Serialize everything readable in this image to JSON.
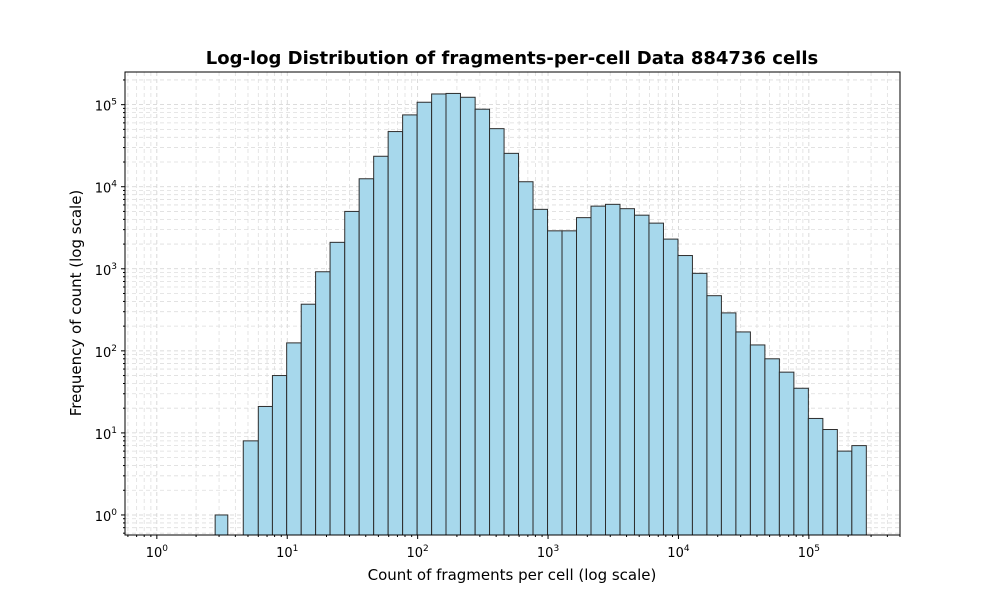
{
  "chart_data": {
    "type": "bar",
    "title": "Log-log Distribution of fragments-per-cell Data 884736 cells",
    "xlabel": "Count of fragments per cell (log scale)",
    "ylabel": "Frequency of count (log scale)",
    "xscale": "log",
    "yscale": "log",
    "xlim": [
      0.57,
      500000
    ],
    "ylim": [
      0.57,
      250000
    ],
    "grid": "both (major and minor), dashed",
    "bar_color": "#a7d8ec",
    "edge_color": "#2d2d2d",
    "x_ticks": [
      {
        "base": "10",
        "exp": "0",
        "value": 1
      },
      {
        "base": "10",
        "exp": "1",
        "value": 10
      },
      {
        "base": "10",
        "exp": "2",
        "value": 100
      },
      {
        "base": "10",
        "exp": "3",
        "value": 1000
      },
      {
        "base": "10",
        "exp": "4",
        "value": 10000
      },
      {
        "base": "10",
        "exp": "5",
        "value": 100000
      }
    ],
    "y_ticks": [
      {
        "base": "10",
        "exp": "0",
        "value": 1
      },
      {
        "base": "10",
        "exp": "1",
        "value": 10
      },
      {
        "base": "10",
        "exp": "2",
        "value": 100
      },
      {
        "base": "10",
        "exp": "3",
        "value": 1000
      },
      {
        "base": "10",
        "exp": "4",
        "value": 10000
      },
      {
        "base": "10",
        "exp": "5",
        "value": 100000
      }
    ],
    "bin_edges": [
      2.8,
      3.5,
      4.6,
      6.0,
      7.7,
      9.9,
      12.8,
      16.5,
      21.3,
      27.6,
      35.6,
      46.0,
      59.4,
      76.7,
      99.1,
      128,
      165,
      213,
      276,
      356,
      460,
      594,
      767,
      991,
      1280,
      1653,
      2135,
      2758,
      3562,
      4601,
      5942,
      7675,
      9913,
      12800,
      16534,
      21355,
      27582,
      35625,
      46013,
      59430,
      76760,
      99142,
      128052,
      165392,
      213621,
      275912
    ],
    "values": [
      1,
      0,
      8,
      21,
      50,
      125,
      370,
      920,
      2100,
      5000,
      12500,
      23500,
      47000,
      75000,
      107000,
      135000,
      137000,
      123000,
      88000,
      51000,
      25500,
      11500,
      5300,
      2900,
      2900,
      4200,
      5800,
      6100,
      5400,
      4500,
      3600,
      2300,
      1450,
      880,
      470,
      290,
      170,
      118,
      80,
      55,
      35,
      15,
      11,
      6,
      7
    ]
  }
}
